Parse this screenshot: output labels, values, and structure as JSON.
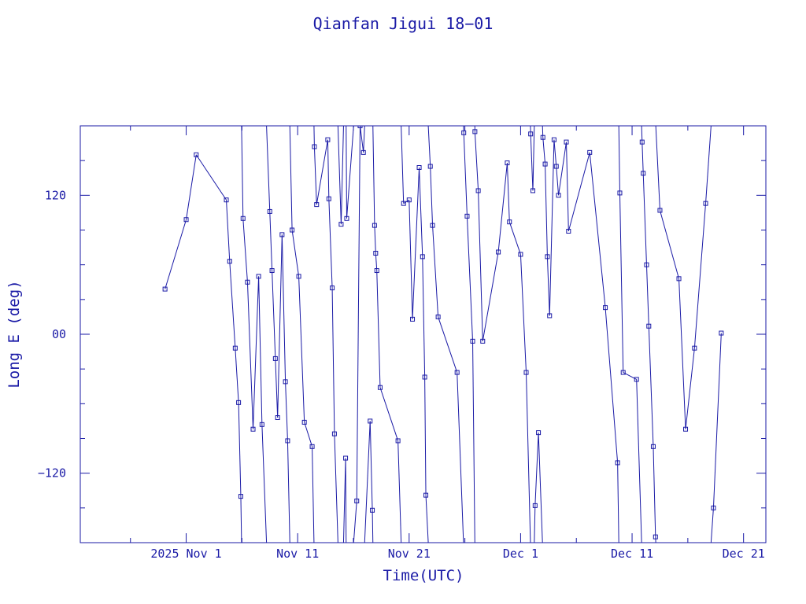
{
  "chart_data": {
    "type": "line",
    "title": "Qianfan Jigui 18−01",
    "xlabel": "Time(UTC)",
    "ylabel": "Long E (deg)",
    "x_unit": "days",
    "x_ticks": [
      {
        "label": "2025 Nov  1",
        "day": 0
      },
      {
        "label": "Nov 11",
        "day": 10
      },
      {
        "label": "Nov 21",
        "day": 20
      },
      {
        "label": "Dec  1",
        "day": 30
      },
      {
        "label": "Dec 11",
        "day": 40
      },
      {
        "label": "Dec 21",
        "day": 50
      }
    ],
    "y_ticks": [
      {
        "label": "120",
        "value": 120
      },
      {
        "label": "00",
        "value": 0
      },
      {
        "label": "−120",
        "value": -120
      }
    ],
    "xlim": [
      -9.5,
      52
    ],
    "ylim": [
      -180,
      180
    ],
    "grid": false,
    "colors": {
      "line": "#1a1aa6",
      "axis": "#1a1aa6",
      "background": "#ffffff"
    },
    "series": [
      {
        "points": [
          [
            -1.9,
            39
          ],
          [
            0.0,
            99
          ],
          [
            0.9,
            155
          ],
          [
            3.6,
            116
          ],
          [
            3.9,
            63
          ],
          [
            4.4,
            -12
          ],
          [
            4.7,
            -59
          ],
          [
            4.9,
            -140
          ],
          [
            5.1,
            100
          ],
          [
            5.5,
            45
          ],
          [
            6.0,
            -82
          ],
          [
            6.5,
            50
          ],
          [
            6.8,
            -78
          ],
          [
            7.5,
            106
          ],
          [
            7.7,
            55
          ],
          [
            8.0,
            -21
          ],
          [
            8.2,
            -72
          ],
          [
            8.6,
            86
          ],
          [
            8.9,
            -41
          ],
          [
            9.1,
            -92
          ],
          [
            9.5,
            90
          ],
          [
            10.1,
            50
          ],
          [
            10.6,
            -76
          ],
          [
            11.3,
            -97
          ],
          [
            11.5,
            162
          ],
          [
            11.7,
            112
          ],
          [
            12.7,
            168
          ],
          [
            12.8,
            117
          ],
          [
            13.1,
            40
          ],
          [
            13.3,
            -86
          ],
          [
            13.9,
            95
          ],
          [
            14.3,
            -107
          ],
          [
            14.4,
            100
          ],
          [
            15.3,
            -144
          ],
          [
            15.6,
            180
          ],
          [
            15.9,
            157
          ],
          [
            16.5,
            -75
          ],
          [
            16.7,
            -152
          ],
          [
            16.9,
            94
          ],
          [
            17.0,
            70
          ],
          [
            17.1,
            55
          ],
          [
            17.4,
            -46
          ],
          [
            19.0,
            -92
          ],
          [
            19.5,
            113
          ],
          [
            20.0,
            116
          ],
          [
            20.3,
            13
          ],
          [
            20.9,
            144
          ],
          [
            21.2,
            67
          ],
          [
            21.4,
            -37
          ],
          [
            21.5,
            -139
          ],
          [
            21.9,
            145
          ],
          [
            22.1,
            94
          ],
          [
            22.6,
            15
          ],
          [
            24.3,
            -33
          ],
          [
            24.9,
            174
          ],
          [
            25.2,
            102
          ],
          [
            25.7,
            -6
          ],
          [
            25.9,
            175
          ],
          [
            26.2,
            124
          ],
          [
            26.6,
            -6
          ],
          [
            28.0,
            71
          ],
          [
            28.8,
            148
          ],
          [
            29.0,
            97
          ],
          [
            30.0,
            69
          ],
          [
            30.5,
            -33
          ],
          [
            30.9,
            173
          ],
          [
            31.1,
            124
          ],
          [
            31.3,
            -148
          ],
          [
            31.6,
            -85
          ],
          [
            32.0,
            170
          ],
          [
            32.2,
            147
          ],
          [
            32.4,
            67
          ],
          [
            32.6,
            16
          ],
          [
            33.0,
            168
          ],
          [
            33.2,
            145
          ],
          [
            33.4,
            120
          ],
          [
            34.1,
            166
          ],
          [
            34.3,
            89
          ],
          [
            36.2,
            157
          ],
          [
            37.6,
            23
          ],
          [
            38.7,
            -111
          ],
          [
            38.9,
            122
          ],
          [
            39.2,
            -33
          ],
          [
            40.4,
            -39
          ],
          [
            40.9,
            166
          ],
          [
            41.0,
            139
          ],
          [
            41.3,
            60
          ],
          [
            41.5,
            7
          ],
          [
            41.9,
            -97
          ],
          [
            42.1,
            -175
          ],
          [
            42.5,
            107
          ],
          [
            44.2,
            48
          ],
          [
            44.8,
            -82
          ],
          [
            45.6,
            -12
          ],
          [
            46.6,
            113
          ],
          [
            47.3,
            -150
          ],
          [
            48.0,
            1
          ]
        ]
      }
    ]
  }
}
